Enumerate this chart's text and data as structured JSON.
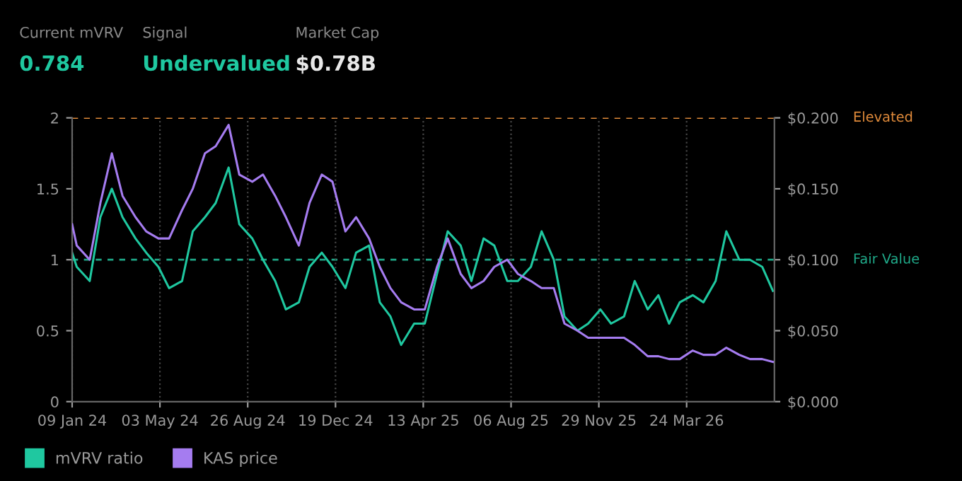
{
  "chart_data": {
    "type": "line",
    "annotations": [
      "Current mVRV",
      "0.784",
      "Signal",
      "Undervalued",
      "Market Cap",
      "$0.78B"
    ],
    "x": [
      "2024-01-09",
      "2024-01-15",
      "2024-02-01",
      "2024-02-15",
      "2024-03-01",
      "2024-03-15",
      "2024-04-01",
      "2024-04-15",
      "2024-05-01",
      "2024-05-15",
      "2024-06-01",
      "2024-06-15",
      "2024-07-01",
      "2024-07-15",
      "2024-08-01",
      "2024-08-15",
      "2024-09-01",
      "2024-09-15",
      "2024-10-01",
      "2024-10-15",
      "2024-11-01",
      "2024-11-15",
      "2024-12-01",
      "2024-12-15",
      "2025-01-01",
      "2025-01-15",
      "2025-02-01",
      "2025-02-15",
      "2025-03-01",
      "2025-03-15",
      "2025-04-01",
      "2025-04-15",
      "2025-05-01",
      "2025-05-15",
      "2025-06-01",
      "2025-06-15",
      "2025-07-01",
      "2025-07-15",
      "2025-08-01",
      "2025-08-15",
      "2025-09-01",
      "2025-09-15",
      "2025-10-01",
      "2025-10-15",
      "2025-11-01",
      "2025-11-15",
      "2025-12-01",
      "2025-12-15",
      "2026-01-01",
      "2026-01-15",
      "2026-02-01",
      "2026-02-15",
      "2026-03-01",
      "2026-03-15",
      "2026-04-01",
      "2026-04-15",
      "2026-05-01",
      "2026-05-15",
      "2026-06-01",
      "2026-06-15",
      "2026-07-01",
      "2026-07-15"
    ],
    "series": [
      {
        "name": "mVRV ratio",
        "color": "#1fc8a0",
        "values": [
          1.05,
          0.95,
          0.85,
          1.3,
          1.5,
          1.3,
          1.15,
          1.05,
          0.95,
          0.8,
          0.85,
          1.2,
          1.3,
          1.4,
          1.65,
          1.25,
          1.15,
          1.0,
          0.85,
          0.65,
          0.7,
          0.95,
          1.05,
          0.95,
          0.8,
          1.05,
          1.1,
          0.7,
          0.6,
          0.4,
          0.55,
          0.55,
          0.9,
          1.2,
          1.1,
          0.85,
          1.15,
          1.1,
          0.85,
          0.85,
          0.95,
          1.2,
          1.0,
          0.6,
          0.5,
          0.55,
          0.65,
          0.55,
          0.6,
          0.85,
          0.65,
          0.75,
          0.55,
          0.7,
          0.75,
          0.7,
          0.85,
          1.2,
          1.0,
          1.0,
          0.95,
          0.78
        ]
      },
      {
        "name": "KAS price",
        "color": "#a57cf0",
        "axis": "y2",
        "values": [
          0.125,
          0.11,
          0.1,
          0.14,
          0.175,
          0.145,
          0.13,
          0.12,
          0.115,
          0.115,
          0.135,
          0.15,
          0.175,
          0.18,
          0.195,
          0.16,
          0.155,
          0.16,
          0.145,
          0.13,
          0.11,
          0.14,
          0.16,
          0.155,
          0.12,
          0.13,
          0.115,
          0.095,
          0.08,
          0.07,
          0.065,
          0.065,
          0.095,
          0.115,
          0.09,
          0.08,
          0.085,
          0.095,
          0.1,
          0.09,
          0.085,
          0.08,
          0.08,
          0.055,
          0.05,
          0.045,
          0.045,
          0.045,
          0.045,
          0.04,
          0.032,
          0.032,
          0.03,
          0.03,
          0.036,
          0.033,
          0.033,
          0.038,
          0.033,
          0.03,
          0.03,
          0.028
        ]
      }
    ],
    "xlim": [
      "2024-01-09",
      "2026-07-17"
    ],
    "xticks": [
      {
        "value": "2024-01-09",
        "label": "09 Jan 24"
      },
      {
        "value": "2024-05-03",
        "label": "03 May 24"
      },
      {
        "value": "2024-08-26",
        "label": "26 Aug 24"
      },
      {
        "value": "2024-12-19",
        "label": "19 Dec 24"
      },
      {
        "value": "2025-04-13",
        "label": "13 Apr 25"
      },
      {
        "value": "2025-08-06",
        "label": "06 Aug 25"
      },
      {
        "value": "2025-11-29",
        "label": "29 Nov 25"
      },
      {
        "value": "2026-03-24",
        "label": "24 Mar 26"
      }
    ],
    "ylim": [
      0,
      2
    ],
    "yticks": [
      0,
      0.5,
      1,
      1.5,
      2
    ],
    "y2lim": [
      0,
      0.2
    ],
    "y2ticks": [
      {
        "value": 0,
        "label": "$0.000"
      },
      {
        "value": 0.05,
        "label": "$0.050"
      },
      {
        "value": 0.1,
        "label": "$0.100"
      },
      {
        "value": 0.15,
        "label": "$0.150"
      },
      {
        "value": 0.2,
        "label": "$0.200"
      }
    ],
    "ref_lines": [
      {
        "axis": "y",
        "value": 2,
        "label": "Elevated",
        "color": "#e08a3a",
        "line_style": "dashed"
      },
      {
        "axis": "y",
        "value": 1,
        "label": "Fair Value",
        "color": "#1fa888",
        "line_style": "dashed"
      }
    ],
    "grid": "x",
    "legend": "bottom left",
    "marker": "none",
    "line_style": "solid"
  }
}
